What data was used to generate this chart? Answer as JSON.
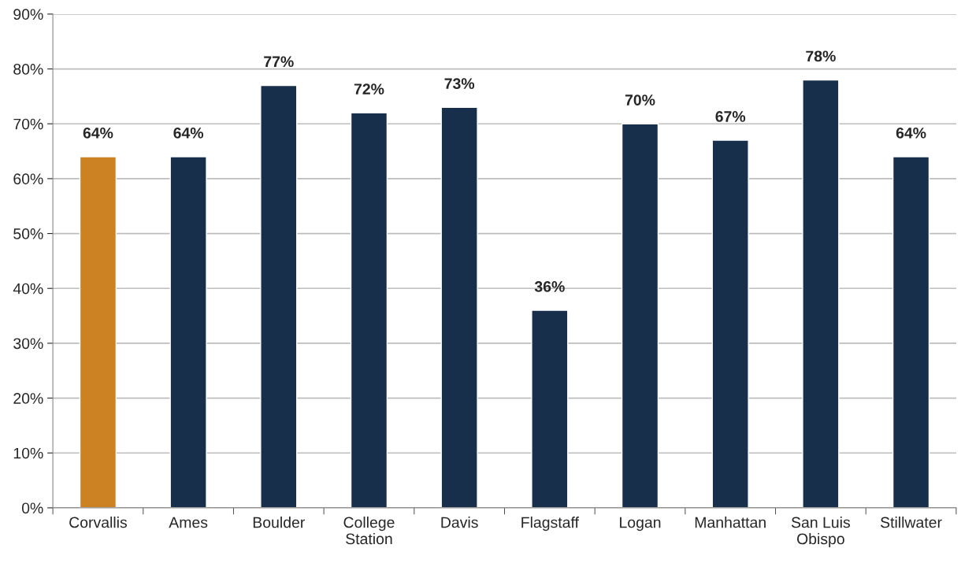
{
  "chart_data": {
    "type": "bar",
    "categories": [
      "Corvallis",
      "Ames",
      "Boulder",
      "College\nStation",
      "Davis",
      "Flagstaff",
      "Logan",
      "Manhattan",
      "San Luis\nObispo",
      "Stillwater"
    ],
    "values": [
      64,
      64,
      77,
      72,
      73,
      36,
      70,
      67,
      78,
      64
    ],
    "value_labels": [
      "64%",
      "64%",
      "77%",
      "72%",
      "73%",
      "36%",
      "70%",
      "67%",
      "78%",
      "64%"
    ],
    "colors": [
      "#cc8122",
      "#172f4a",
      "#172f4a",
      "#172f4a",
      "#172f4a",
      "#172f4a",
      "#172f4a",
      "#172f4a",
      "#172f4a",
      "#172f4a"
    ],
    "ylim": [
      0,
      90
    ],
    "yticks": [
      {
        "value": 0,
        "label": "0%"
      },
      {
        "value": 10,
        "label": "10%"
      },
      {
        "value": 20,
        "label": "20%"
      },
      {
        "value": 30,
        "label": "30%"
      },
      {
        "value": 40,
        "label": "40%"
      },
      {
        "value": 50,
        "label": "50%"
      },
      {
        "value": 60,
        "label": "60%"
      },
      {
        "value": 70,
        "label": "70%"
      },
      {
        "value": 80,
        "label": "80%"
      },
      {
        "value": 90,
        "label": "90%"
      }
    ],
    "grid": "y"
  }
}
